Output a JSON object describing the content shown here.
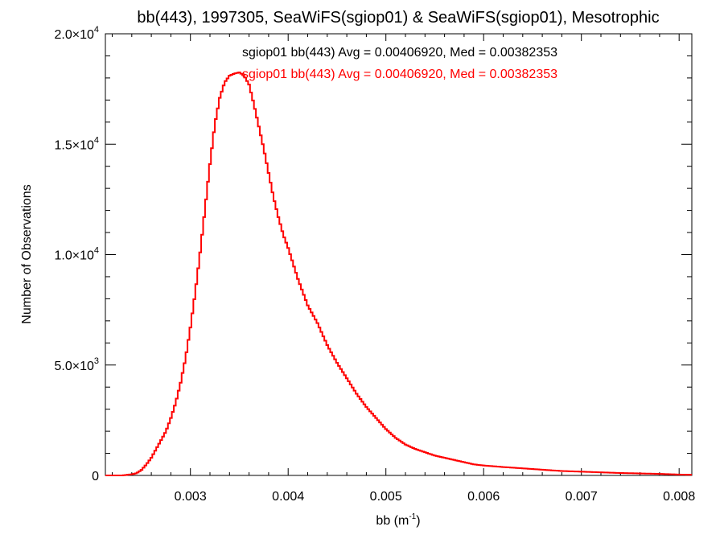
{
  "chart_data": {
    "type": "line",
    "title": "bb(443), 1997305, SeaWiFS(sgiop01) & SeaWiFS(sgiop01), Mesotrophic",
    "xlabel": "bb (m",
    "xlabel_exp": "-1",
    "xlabel_close": ")",
    "ylabel": "Number of Observations",
    "xlim": [
      0.00213,
      0.00813
    ],
    "ylim": [
      0,
      20000
    ],
    "grid": false,
    "x_ticks": [
      {
        "value": 0.003,
        "label": "0.003"
      },
      {
        "value": 0.004,
        "label": "0.004"
      },
      {
        "value": 0.005,
        "label": "0.005"
      },
      {
        "value": 0.006,
        "label": "0.006"
      },
      {
        "value": 0.007,
        "label": "0.007"
      },
      {
        "value": 0.008,
        "label": "0.008"
      }
    ],
    "y_ticks": [
      {
        "value": 0,
        "mantissa": "0",
        "exp": ""
      },
      {
        "value": 5000,
        "mantissa": "5.0×10",
        "exp": "3"
      },
      {
        "value": 10000,
        "mantissa": "1.0×10",
        "exp": "4"
      },
      {
        "value": 15000,
        "mantissa": "1.5×10",
        "exp": "4"
      },
      {
        "value": 20000,
        "mantissa": "2.0×10",
        "exp": "4"
      }
    ],
    "annotations": [
      {
        "text": "sgiop01 bb(443) Avg = 0.00406920, Med = 0.00382353",
        "color": "#000000"
      },
      {
        "text": "sgiop01 bb(443) Avg = 0.00406920, Med = 0.00382353",
        "color": "#ff0000"
      }
    ],
    "series": [
      {
        "color": "#ff0000",
        "step": true,
        "x": [
          0.00213,
          0.0023,
          0.0024,
          0.00245,
          0.0025,
          0.00255,
          0.0026,
          0.00265,
          0.0027,
          0.00275,
          0.0028,
          0.00285,
          0.0029,
          0.00295,
          0.003,
          0.00305,
          0.0031,
          0.00315,
          0.0032,
          0.00325,
          0.0033,
          0.00335,
          0.0034,
          0.00345,
          0.0035,
          0.00355,
          0.0036,
          0.00365,
          0.0037,
          0.00375,
          0.0038,
          0.00385,
          0.0039,
          0.00395,
          0.004,
          0.00405,
          0.0041,
          0.00415,
          0.0042,
          0.0043,
          0.0044,
          0.0045,
          0.0046,
          0.0047,
          0.0048,
          0.0049,
          0.005,
          0.0051,
          0.0052,
          0.0053,
          0.0054,
          0.0055,
          0.0056,
          0.0057,
          0.0058,
          0.0059,
          0.006,
          0.0062,
          0.0064,
          0.0066,
          0.0068,
          0.007,
          0.0072,
          0.0074,
          0.0076,
          0.0078,
          0.008,
          0.00813
        ],
        "values": [
          0,
          0,
          50,
          100,
          250,
          500,
          800,
          1200,
          1600,
          2000,
          2600,
          3300,
          4200,
          5300,
          6700,
          8300,
          10100,
          12100,
          14100,
          15900,
          17100,
          17800,
          18100,
          18200,
          18250,
          18100,
          17700,
          16800,
          15800,
          14800,
          13700,
          12600,
          11700,
          10900,
          10300,
          9600,
          8900,
          8300,
          7700,
          6900,
          5900,
          5100,
          4400,
          3700,
          3100,
          2600,
          2100,
          1700,
          1400,
          1200,
          1050,
          900,
          800,
          700,
          600,
          500,
          450,
          380,
          320,
          260,
          200,
          170,
          140,
          110,
          90,
          70,
          40,
          30
        ]
      }
    ]
  }
}
